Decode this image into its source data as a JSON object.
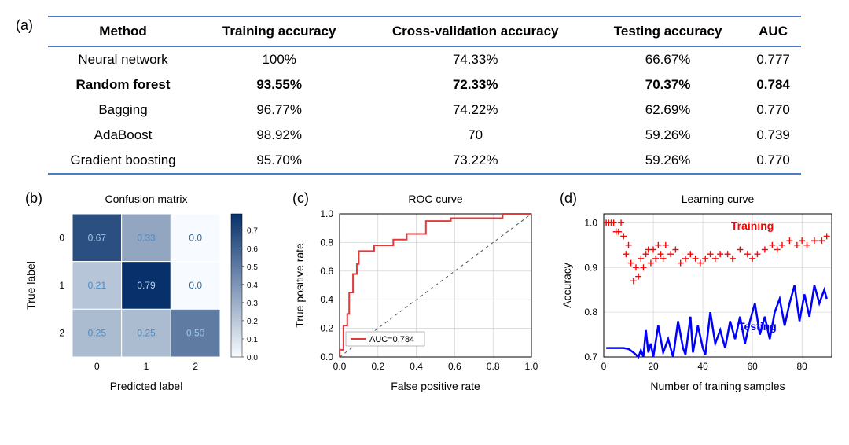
{
  "panel_labels": {
    "a": "(a)",
    "b": "(b)",
    "c": "(c)",
    "d": "(d)"
  },
  "table": {
    "border_color": "#4a7cc4",
    "columns": [
      "Method",
      "Training accuracy",
      "Cross-validation accuracy",
      "Testing accuracy",
      "AUC"
    ],
    "rows": [
      {
        "cells": [
          "Neural network",
          "100%",
          "74.33%",
          "66.67%",
          "0.777"
        ],
        "bold": false
      },
      {
        "cells": [
          "Random forest",
          "93.55%",
          "72.33%",
          "70.37%",
          "0.784"
        ],
        "bold": true
      },
      {
        "cells": [
          "Bagging",
          "96.77%",
          "74.22%",
          "62.69%",
          "0.770"
        ],
        "bold": false
      },
      {
        "cells": [
          "AdaBoost",
          "98.92%",
          "70",
          "59.26%",
          "0.739"
        ],
        "bold": false
      },
      {
        "cells": [
          "Gradient boosting",
          "95.70%",
          "73.22%",
          "59.26%",
          "0.770"
        ],
        "bold": false
      }
    ]
  },
  "confusion": {
    "title": "Confusion matrix",
    "xlabel": "Predicted label",
    "ylabel": "True label",
    "classes": [
      "0",
      "1",
      "2"
    ],
    "values": [
      [
        0.67,
        0.33,
        0.0
      ],
      [
        0.21,
        0.79,
        0.0
      ],
      [
        0.25,
        0.25,
        0.5
      ]
    ],
    "display": [
      [
        "0.67",
        "0.33",
        "0.0"
      ],
      [
        "0.21",
        "0.79",
        "0.0"
      ],
      [
        "0.25",
        "0.25",
        "0.50"
      ]
    ],
    "text_colors": [
      [
        "#a3c3e5",
        "#4b8bc4",
        "#2a6ea5"
      ],
      [
        "#4b8bc4",
        "#bcd7eb",
        "#2a6ea5"
      ],
      [
        "#4b8bc4",
        "#4b8bc4",
        "#9ec7e4"
      ]
    ],
    "colorbar": {
      "ticks": [
        0.0,
        0.1,
        0.2,
        0.3,
        0.4,
        0.5,
        0.6,
        0.7
      ],
      "range": [
        0.0,
        0.79
      ]
    },
    "cmap_low": "#f7fbff",
    "cmap_high": "#08306b",
    "title_fontsize": 14,
    "label_fontsize": 14,
    "tick_fontsize": 12
  },
  "roc": {
    "title": "ROC curve",
    "xlabel": "False positive rate",
    "ylabel": "True positive rate",
    "xlim": [
      0.0,
      1.0
    ],
    "ylim": [
      0.0,
      1.0
    ],
    "xticks": [
      0.0,
      0.2,
      0.4,
      0.6,
      0.8,
      1.0
    ],
    "yticks": [
      0.0,
      0.2,
      0.4,
      0.6,
      0.8,
      1.0
    ],
    "line_color": "#e23b3b",
    "line_width": 2,
    "diag_color": "#555555",
    "diag_dash": "4,4",
    "grid_color": "#cccccc",
    "legend_label": "AUC=0.784",
    "points": [
      [
        0.0,
        0.0
      ],
      [
        0.02,
        0.05
      ],
      [
        0.04,
        0.22
      ],
      [
        0.05,
        0.3
      ],
      [
        0.07,
        0.45
      ],
      [
        0.09,
        0.58
      ],
      [
        0.1,
        0.65
      ],
      [
        0.12,
        0.74
      ],
      [
        0.18,
        0.74
      ],
      [
        0.22,
        0.78
      ],
      [
        0.28,
        0.78
      ],
      [
        0.3,
        0.82
      ],
      [
        0.35,
        0.82
      ],
      [
        0.38,
        0.86
      ],
      [
        0.45,
        0.86
      ],
      [
        0.5,
        0.95
      ],
      [
        0.58,
        0.95
      ],
      [
        0.6,
        0.97
      ],
      [
        0.85,
        0.97
      ],
      [
        1.0,
        1.0
      ]
    ]
  },
  "learning": {
    "title": "Learning curve",
    "xlabel": "Number of training samples",
    "ylabel": "Accuracy",
    "xlim": [
      0,
      92
    ],
    "ylim": [
      0.7,
      1.02
    ],
    "xticks": [
      0,
      20,
      40,
      60,
      80
    ],
    "yticks": [
      0.7,
      0.8,
      0.9,
      1.0
    ],
    "grid_color": "#cccccc",
    "training": {
      "label": "Training",
      "color": "#ff0000",
      "marker": "+",
      "marker_size": 8,
      "points": [
        [
          1,
          1.0
        ],
        [
          2,
          1.0
        ],
        [
          3,
          1.0
        ],
        [
          4,
          1.0
        ],
        [
          5,
          0.98
        ],
        [
          6,
          0.98
        ],
        [
          7,
          1.0
        ],
        [
          8,
          0.97
        ],
        [
          9,
          0.93
        ],
        [
          10,
          0.95
        ],
        [
          11,
          0.91
        ],
        [
          12,
          0.87
        ],
        [
          13,
          0.9
        ],
        [
          14,
          0.88
        ],
        [
          15,
          0.92
        ],
        [
          16,
          0.9
        ],
        [
          17,
          0.93
        ],
        [
          18,
          0.94
        ],
        [
          19,
          0.91
        ],
        [
          20,
          0.94
        ],
        [
          21,
          0.92
        ],
        [
          22,
          0.95
        ],
        [
          23,
          0.93
        ],
        [
          24,
          0.92
        ],
        [
          25,
          0.95
        ],
        [
          27,
          0.93
        ],
        [
          29,
          0.94
        ],
        [
          31,
          0.91
        ],
        [
          33,
          0.92
        ],
        [
          35,
          0.93
        ],
        [
          37,
          0.92
        ],
        [
          39,
          0.91
        ],
        [
          41,
          0.92
        ],
        [
          43,
          0.93
        ],
        [
          45,
          0.92
        ],
        [
          47,
          0.93
        ],
        [
          50,
          0.93
        ],
        [
          52,
          0.92
        ],
        [
          55,
          0.94
        ],
        [
          58,
          0.93
        ],
        [
          60,
          0.92
        ],
        [
          62,
          0.93
        ],
        [
          65,
          0.94
        ],
        [
          68,
          0.95
        ],
        [
          70,
          0.94
        ],
        [
          72,
          0.95
        ],
        [
          75,
          0.96
        ],
        [
          78,
          0.95
        ],
        [
          80,
          0.96
        ],
        [
          82,
          0.95
        ],
        [
          85,
          0.96
        ],
        [
          88,
          0.96
        ],
        [
          90,
          0.97
        ]
      ]
    },
    "testing": {
      "label": "Testing",
      "color": "#0000ff",
      "line_width": 2.5,
      "points": [
        [
          1,
          0.72
        ],
        [
          3,
          0.72
        ],
        [
          5,
          0.72
        ],
        [
          8,
          0.72
        ],
        [
          10,
          0.718
        ],
        [
          12,
          0.71
        ],
        [
          14,
          0.7
        ],
        [
          15,
          0.715
        ],
        [
          16,
          0.7
        ],
        [
          17,
          0.76
        ],
        [
          18,
          0.71
        ],
        [
          19,
          0.73
        ],
        [
          20,
          0.7
        ],
        [
          22,
          0.77
        ],
        [
          24,
          0.71
        ],
        [
          26,
          0.74
        ],
        [
          28,
          0.7
        ],
        [
          30,
          0.78
        ],
        [
          32,
          0.72
        ],
        [
          33,
          0.705
        ],
        [
          35,
          0.79
        ],
        [
          36,
          0.71
        ],
        [
          38,
          0.77
        ],
        [
          40,
          0.72
        ],
        [
          41,
          0.705
        ],
        [
          43,
          0.8
        ],
        [
          45,
          0.73
        ],
        [
          47,
          0.76
        ],
        [
          49,
          0.72
        ],
        [
          51,
          0.78
        ],
        [
          53,
          0.74
        ],
        [
          55,
          0.79
        ],
        [
          57,
          0.73
        ],
        [
          59,
          0.78
        ],
        [
          61,
          0.82
        ],
        [
          63,
          0.75
        ],
        [
          65,
          0.79
        ],
        [
          67,
          0.74
        ],
        [
          69,
          0.8
        ],
        [
          71,
          0.83
        ],
        [
          73,
          0.77
        ],
        [
          75,
          0.82
        ],
        [
          77,
          0.86
        ],
        [
          79,
          0.78
        ],
        [
          81,
          0.84
        ],
        [
          83,
          0.79
        ],
        [
          85,
          0.86
        ],
        [
          87,
          0.82
        ],
        [
          89,
          0.85
        ],
        [
          90,
          0.83
        ]
      ]
    }
  },
  "global": {
    "text_color": "#000000",
    "axis_color": "#000000"
  }
}
